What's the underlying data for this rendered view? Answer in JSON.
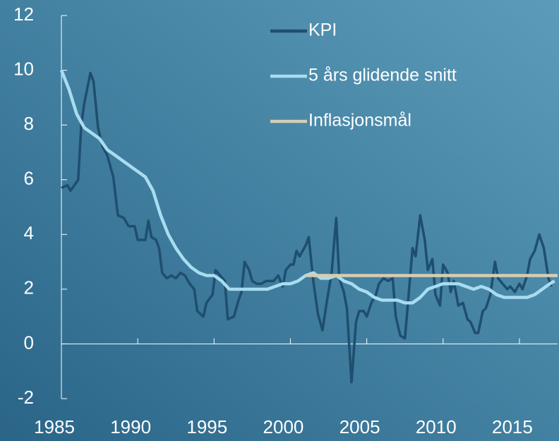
{
  "chart_data": {
    "type": "line",
    "xlim": [
      1985,
      2017.5
    ],
    "xticks": [
      1985,
      1990,
      1995,
      2000,
      2005,
      2010,
      2015
    ],
    "ylim": [
      -2,
      12
    ],
    "yticks": [
      -2,
      0,
      2,
      4,
      6,
      8,
      10,
      12
    ],
    "legend": "top-right",
    "series": [
      {
        "name": "KPI",
        "color": "#1f4e6e",
        "x": [
          1985.0,
          1985.4,
          1985.6,
          1986.1,
          1986.3,
          1986.5,
          1986.9,
          1987.1,
          1987.4,
          1987.7,
          1988.0,
          1988.4,
          1988.7,
          1989.1,
          1989.4,
          1989.8,
          1990.0,
          1990.5,
          1990.7,
          1990.9,
          1991.2,
          1991.4,
          1991.6,
          1991.9,
          1992.2,
          1992.5,
          1992.8,
          1993.1,
          1993.4,
          1993.7,
          1993.9,
          1994.3,
          1994.5,
          1994.9,
          1995.1,
          1995.4,
          1995.7,
          1995.9,
          1996.3,
          1996.6,
          1996.8,
          1997.0,
          1997.3,
          1997.5,
          1997.8,
          1998.1,
          1998.4,
          1998.7,
          1998.9,
          1999.2,
          1999.5,
          1999.7,
          2000.0,
          2000.2,
          2000.4,
          2000.6,
          2001.0,
          2001.2,
          2001.5,
          2001.8,
          2002.1,
          2002.4,
          2002.7,
          2003.0,
          2003.2,
          2003.5,
          2003.7,
          2004.0,
          2004.3,
          2004.5,
          2004.8,
          2005.0,
          2005.3,
          2005.6,
          2005.8,
          2006.1,
          2006.4,
          2006.7,
          2006.9,
          2007.2,
          2007.5,
          2007.7,
          2008.0,
          2008.2,
          2008.5,
          2008.8,
          2009.0,
          2009.3,
          2009.5,
          2009.8,
          2010.0,
          2010.3,
          2010.5,
          2010.7,
          2011.0,
          2011.3,
          2011.6,
          2011.8,
          2012.1,
          2012.3,
          2012.6,
          2012.8,
          2013.1,
          2013.4,
          2013.6,
          2013.9,
          2014.2,
          2014.4,
          2014.7,
          2015.0,
          2015.2,
          2015.5,
          2015.7,
          2016.0,
          2016.3,
          2016.6,
          2016.9,
          2017.1
        ],
        "values": [
          5.7,
          5.8,
          5.6,
          6.0,
          8.0,
          8.8,
          9.9,
          9.6,
          7.9,
          7.2,
          6.9,
          6.1,
          4.7,
          4.6,
          4.3,
          4.3,
          3.8,
          3.8,
          4.5,
          3.9,
          3.8,
          3.5,
          2.6,
          2.4,
          2.5,
          2.4,
          2.6,
          2.5,
          2.2,
          2.0,
          1.2,
          1.0,
          1.5,
          1.8,
          2.7,
          2.5,
          2.3,
          0.9,
          1.0,
          1.6,
          1.9,
          3.0,
          2.7,
          2.3,
          2.2,
          2.2,
          2.3,
          2.3,
          2.3,
          2.5,
          2.1,
          2.7,
          2.9,
          2.9,
          3.4,
          3.2,
          3.6,
          3.9,
          2.3,
          1.1,
          0.5,
          1.6,
          2.6,
          4.6,
          2.4,
          1.9,
          1.3,
          -1.4,
          0.8,
          1.2,
          1.2,
          1.0,
          1.5,
          1.8,
          2.2,
          2.4,
          2.3,
          2.4,
          1.0,
          0.3,
          0.2,
          1.5,
          3.5,
          3.2,
          4.7,
          3.8,
          2.7,
          3.1,
          1.8,
          1.4,
          2.9,
          2.6,
          1.9,
          2.3,
          1.4,
          1.5,
          0.9,
          0.8,
          0.4,
          0.4,
          1.2,
          1.3,
          1.8,
          3.0,
          2.4,
          2.2,
          2.0,
          2.1,
          1.9,
          2.2,
          2.0,
          2.5,
          3.1,
          3.4,
          4.0,
          3.5,
          2.4,
          2.1
        ]
      },
      {
        "name": "5 års glidende snitt",
        "color": "#a8dcf0",
        "x": [
          1985.0,
          1985.5,
          1986.0,
          1986.5,
          1987.0,
          1987.5,
          1988.0,
          1988.5,
          1989.0,
          1989.5,
          1990.0,
          1990.5,
          1991.0,
          1991.5,
          1992.0,
          1992.5,
          1993.0,
          1993.5,
          1994.0,
          1994.5,
          1995.0,
          1995.5,
          1996.0,
          1996.5,
          1997.0,
          1997.5,
          1998.0,
          1998.5,
          1999.0,
          1999.5,
          2000.0,
          2000.5,
          2001.0,
          2001.5,
          2002.0,
          2002.5,
          2003.0,
          2003.5,
          2004.0,
          2004.5,
          2005.0,
          2005.5,
          2006.0,
          2006.5,
          2007.0,
          2007.5,
          2008.0,
          2008.5,
          2009.0,
          2009.5,
          2010.0,
          2010.5,
          2011.0,
          2011.5,
          2012.0,
          2012.5,
          2013.0,
          2013.5,
          2014.0,
          2014.5,
          2015.0,
          2015.5,
          2016.0,
          2016.5,
          2017.0,
          2017.3
        ],
        "values": [
          10.0,
          9.3,
          8.4,
          7.9,
          7.7,
          7.5,
          7.1,
          6.9,
          6.7,
          6.5,
          6.3,
          6.1,
          5.6,
          4.7,
          4.0,
          3.5,
          3.1,
          2.8,
          2.6,
          2.5,
          2.5,
          2.3,
          2.0,
          2.0,
          2.0,
          2.0,
          2.0,
          2.0,
          2.1,
          2.2,
          2.2,
          2.3,
          2.5,
          2.6,
          2.4,
          2.4,
          2.5,
          2.3,
          2.2,
          2.0,
          1.9,
          1.7,
          1.6,
          1.6,
          1.6,
          1.5,
          1.5,
          1.7,
          2.0,
          2.1,
          2.2,
          2.2,
          2.2,
          2.1,
          2.0,
          2.1,
          2.0,
          1.8,
          1.7,
          1.7,
          1.7,
          1.7,
          1.8,
          2.0,
          2.2,
          2.3
        ]
      },
      {
        "name": "Inflasjonsmål",
        "color": "#d8cdb0",
        "x": [
          2001,
          2017.5
        ],
        "values": [
          2.5,
          2.5
        ]
      }
    ]
  }
}
